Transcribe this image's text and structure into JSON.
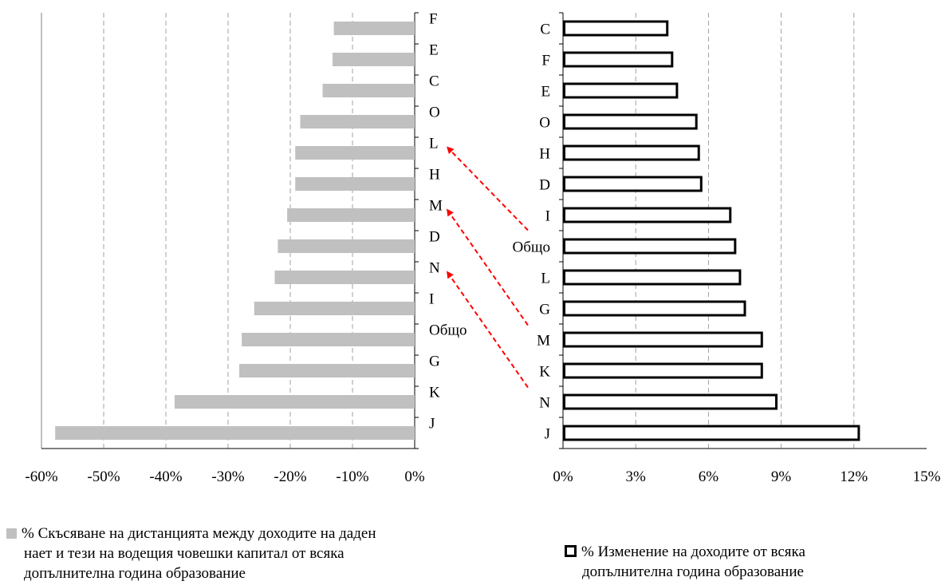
{
  "chart_data": [
    {
      "type": "bar",
      "orientation": "horizontal",
      "categories": [
        "F",
        "E",
        "C",
        "O",
        "L",
        "H",
        "M",
        "D",
        "N",
        "I",
        "Общо",
        "G",
        "K",
        "J"
      ],
      "series": [
        {
          "name": "% Скъсяване на дистанцията между доходите на даден нает и тези на водещия човешки капитал от всяка допълнителна година образование",
          "values": [
            -13,
            -13.2,
            -14.8,
            -18.4,
            -19.2,
            -19.2,
            -20.5,
            -22,
            -22.5,
            -25.8,
            -27.8,
            -28.2,
            -38.6,
            -57.8
          ]
        }
      ],
      "xlim": [
        -60,
        0
      ],
      "xticks": [
        "-60%",
        "-50%",
        "-40%",
        "-30%",
        "-20%",
        "-10%",
        "0%"
      ],
      "grid": "vertical dashed",
      "bar_color": "#c0c0c0",
      "legend": "bottom-left"
    },
    {
      "type": "bar",
      "orientation": "horizontal",
      "categories": [
        "C",
        "F",
        "E",
        "O",
        "H",
        "D",
        "I",
        "Общо",
        "L",
        "G",
        "M",
        "K",
        "N",
        "J"
      ],
      "series": [
        {
          "name": "% Изменение на доходите от всяка допълнителна година образование",
          "values": [
            4.3,
            4.5,
            4.7,
            5.5,
            5.6,
            5.7,
            6.9,
            7.1,
            7.3,
            7.5,
            8.2,
            8.2,
            8.8,
            12.2
          ]
        }
      ],
      "xlim": [
        0,
        15
      ],
      "xticks": [
        "0%",
        "3%",
        "6%",
        "9%",
        "12%",
        "15%"
      ],
      "grid": "vertical dashed",
      "bar_style": "white fill, black outline",
      "legend": "bottom-right"
    }
  ],
  "arrows": [
    {
      "from": "Общо",
      "to": "L",
      "color": "#ff0000",
      "style": "dashed"
    },
    {
      "from": "M",
      "to": "M",
      "color": "#ff0000",
      "style": "dashed"
    },
    {
      "from": "N",
      "to": "N",
      "color": "#ff0000",
      "style": "dashed"
    }
  ],
  "legend": {
    "left_line1": "% Скъсяване на дистанцията между доходите на даден",
    "left_line2": "нает и тези на водещия човешки капитал от всяка",
    "left_line3": "допълнителна година образование",
    "right_line1": "% Изменение на доходите от всяка",
    "right_line2": "допълнителна година образование"
  }
}
